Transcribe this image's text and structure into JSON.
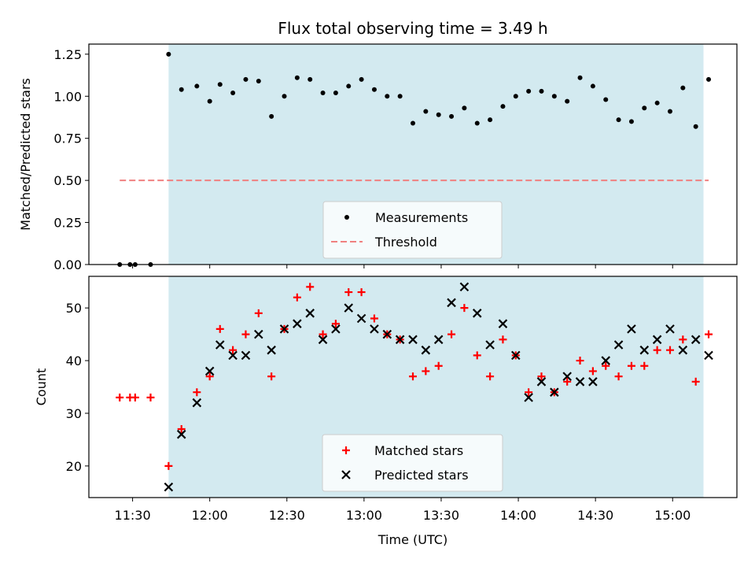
{
  "chart_data": [
    {
      "type": "scatter",
      "title": "Flux total observing time = 3.49 h",
      "xlabel": "",
      "ylabel": "Matched/Predicted stars",
      "ylim": [
        0.0,
        1.31
      ],
      "yticks": [
        0.0,
        0.25,
        0.5,
        0.75,
        1.0,
        1.25
      ],
      "ytick_labels": [
        "0.00",
        "0.25",
        "0.50",
        "0.75",
        "1.00",
        "1.25"
      ],
      "x_is_time": true,
      "xlim": [
        "11:13",
        "15:25"
      ],
      "highlight_span": [
        "11:44",
        "15:12"
      ],
      "highlight_color": "#d3eaf0",
      "series": [
        {
          "name": "Measurements",
          "marker": "dot",
          "color": "#000000",
          "x": [
            "11:25",
            "11:29",
            "11:31",
            "11:37",
            "11:44",
            "11:49",
            "11:55",
            "12:00",
            "12:04",
            "12:09",
            "12:14",
            "12:19",
            "12:24",
            "12:29",
            "12:34",
            "12:39",
            "12:44",
            "12:49",
            "12:54",
            "12:59",
            "13:04",
            "13:09",
            "13:14",
            "13:19",
            "13:24",
            "13:29",
            "13:34",
            "13:39",
            "13:44",
            "13:49",
            "13:54",
            "13:59",
            "14:04",
            "14:09",
            "14:14",
            "14:19",
            "14:24",
            "14:29",
            "14:34",
            "14:39",
            "14:44",
            "14:49",
            "14:54",
            "14:59",
            "15:04",
            "15:09",
            "15:14"
          ],
          "values": [
            0,
            0,
            0,
            0,
            1.25,
            1.04,
            1.06,
            0.97,
            1.07,
            1.02,
            1.1,
            1.09,
            0.88,
            1.0,
            1.11,
            1.1,
            1.02,
            1.02,
            1.06,
            1.1,
            1.04,
            1.0,
            1.0,
            0.84,
            0.91,
            0.89,
            0.88,
            0.93,
            0.84,
            0.86,
            0.94,
            1.0,
            1.03,
            1.03,
            1.0,
            0.97,
            1.11,
            1.06,
            0.98,
            0.86,
            0.85,
            0.93,
            0.96,
            0.91,
            1.05,
            0.82,
            1.1
          ]
        },
        {
          "name": "Threshold",
          "marker": "dashed-line",
          "color": "#f08080",
          "x": [
            "11:25",
            "15:14"
          ],
          "values": [
            0.5,
            0.5
          ]
        }
      ],
      "legend": "lower-center"
    },
    {
      "type": "scatter",
      "xlabel": "Time (UTC)",
      "ylabel": "Count",
      "ylim": [
        14,
        56
      ],
      "yticks": [
        20,
        30,
        40,
        50
      ],
      "ytick_labels": [
        "20",
        "30",
        "40",
        "50"
      ],
      "xticks": [
        "11:30",
        "12:00",
        "12:30",
        "13:00",
        "13:30",
        "14:00",
        "14:30",
        "15:00"
      ],
      "xtick_labels": [
        "11:30",
        "12:00",
        "12:30",
        "13:00",
        "13:30",
        "14:00",
        "14:30",
        "15:00"
      ],
      "x_is_time": true,
      "xlim": [
        "11:13",
        "15:25"
      ],
      "highlight_span": [
        "11:44",
        "15:12"
      ],
      "highlight_color": "#d3eaf0",
      "series": [
        {
          "name": "Matched stars",
          "marker": "plus",
          "color": "#ff0000",
          "x": [
            "11:25",
            "11:29",
            "11:31",
            "11:37",
            "11:44",
            "11:49",
            "11:55",
            "12:00",
            "12:04",
            "12:09",
            "12:14",
            "12:19",
            "12:24",
            "12:29",
            "12:34",
            "12:39",
            "12:44",
            "12:49",
            "12:54",
            "12:59",
            "13:04",
            "13:09",
            "13:14",
            "13:19",
            "13:24",
            "13:29",
            "13:34",
            "13:39",
            "13:44",
            "13:49",
            "13:54",
            "13:59",
            "14:04",
            "14:09",
            "14:14",
            "14:19",
            "14:24",
            "14:29",
            "14:34",
            "14:39",
            "14:44",
            "14:49",
            "14:54",
            "14:59",
            "15:04",
            "15:09",
            "15:14"
          ],
          "values": [
            33,
            33,
            33,
            33,
            20,
            27,
            34,
            37,
            46,
            42,
            45,
            49,
            37,
            46,
            52,
            54,
            45,
            47,
            53,
            53,
            48,
            45,
            44,
            37,
            38,
            39,
            45,
            50,
            41,
            37,
            44,
            41,
            34,
            37,
            34,
            36,
            40,
            38,
            39,
            37,
            39,
            39,
            42,
            42,
            44,
            36,
            45
          ]
        },
        {
          "name": "Predicted stars",
          "marker": "x",
          "color": "#000000",
          "x": [
            "11:44",
            "11:49",
            "11:55",
            "12:00",
            "12:04",
            "12:09",
            "12:14",
            "12:19",
            "12:24",
            "12:29",
            "12:34",
            "12:39",
            "12:44",
            "12:49",
            "12:54",
            "12:59",
            "13:04",
            "13:09",
            "13:14",
            "13:19",
            "13:24",
            "13:29",
            "13:34",
            "13:39",
            "13:44",
            "13:49",
            "13:54",
            "13:59",
            "14:04",
            "14:09",
            "14:14",
            "14:19",
            "14:24",
            "14:29",
            "14:34",
            "14:39",
            "14:44",
            "14:49",
            "14:54",
            "14:59",
            "15:04",
            "15:09",
            "15:14"
          ],
          "values": [
            16,
            26,
            32,
            38,
            43,
            41,
            41,
            45,
            42,
            46,
            47,
            49,
            44,
            46,
            50,
            48,
            46,
            45,
            44,
            44,
            42,
            44,
            51,
            54,
            49,
            43,
            47,
            41,
            33,
            36,
            34,
            37,
            36,
            36,
            40,
            43,
            46,
            42,
            44,
            46,
            42,
            44,
            41
          ]
        }
      ],
      "legend": "lower-center"
    }
  ]
}
